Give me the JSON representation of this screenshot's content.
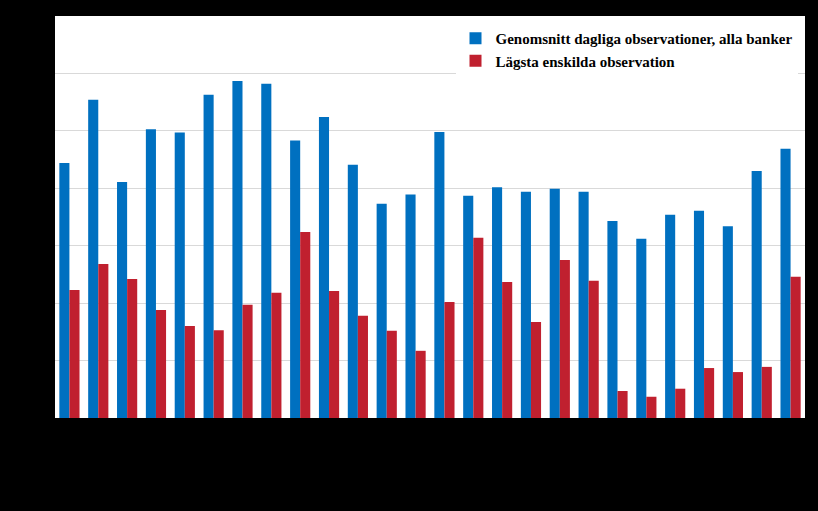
{
  "chart_data": {
    "type": "bar",
    "categories": [
      null,
      null,
      null,
      null,
      null,
      null,
      null,
      null,
      null,
      null,
      null,
      null,
      null,
      null,
      null,
      null,
      null,
      null,
      null,
      null,
      null,
      null,
      null,
      null,
      null,
      null
    ],
    "series": [
      {
        "name": "Genomsnitt dagliga observationer, alla banker",
        "color": "#0070c0",
        "values": [
          4.44,
          5.54,
          4.11,
          5.03,
          4.97,
          5.63,
          5.87,
          5.82,
          4.83,
          5.24,
          4.41,
          3.73,
          3.89,
          4.98,
          3.87,
          4.02,
          3.94,
          3.99,
          3.94,
          3.43,
          3.12,
          3.54,
          3.61,
          3.34,
          4.3,
          4.69
        ]
      },
      {
        "name": "Lägsta enskilda observation",
        "color": "#c0202f",
        "values": [
          2.23,
          2.68,
          2.42,
          1.88,
          1.6,
          1.53,
          1.97,
          2.18,
          3.24,
          2.21,
          1.78,
          1.52,
          1.17,
          2.02,
          3.14,
          2.37,
          1.67,
          2.75,
          2.39,
          0.47,
          0.37,
          0.51,
          0.87,
          0.8,
          0.89,
          2.46
        ]
      }
    ],
    "ylim": [
      0,
      7
    ],
    "yticks": [
      0,
      1,
      2,
      3,
      4,
      5,
      6,
      7
    ],
    "grid": true,
    "legend": "top-right",
    "tick_labels": false
  }
}
